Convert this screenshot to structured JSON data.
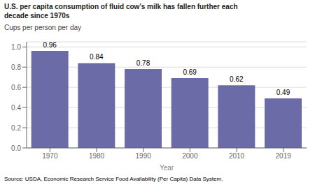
{
  "chart_data": {
    "type": "bar",
    "title": "U.S. per capita consumption of fluid cow’s milk has fallen further each\ndecade since 1970s",
    "ylabel": "Cups per person per day",
    "xlabel": "Year",
    "source": "Source: USDA, Economic Research Service Food Availability (Per Capita) Data System.",
    "categories": [
      "1970",
      "1980",
      "1990",
      "2000",
      "2010",
      "2019"
    ],
    "values": [
      0.96,
      0.84,
      0.78,
      0.69,
      0.62,
      0.49
    ],
    "color": "#6B6BA8",
    "ylim": [
      0.0,
      1.05
    ],
    "yticks": [
      {
        "value": 0,
        "label": "0.0"
      },
      0.2,
      0.4,
      0.6,
      0.8,
      {
        "value": 1,
        "label": "1.0"
      }
    ],
    "grid": true,
    "data_labels": true
  }
}
